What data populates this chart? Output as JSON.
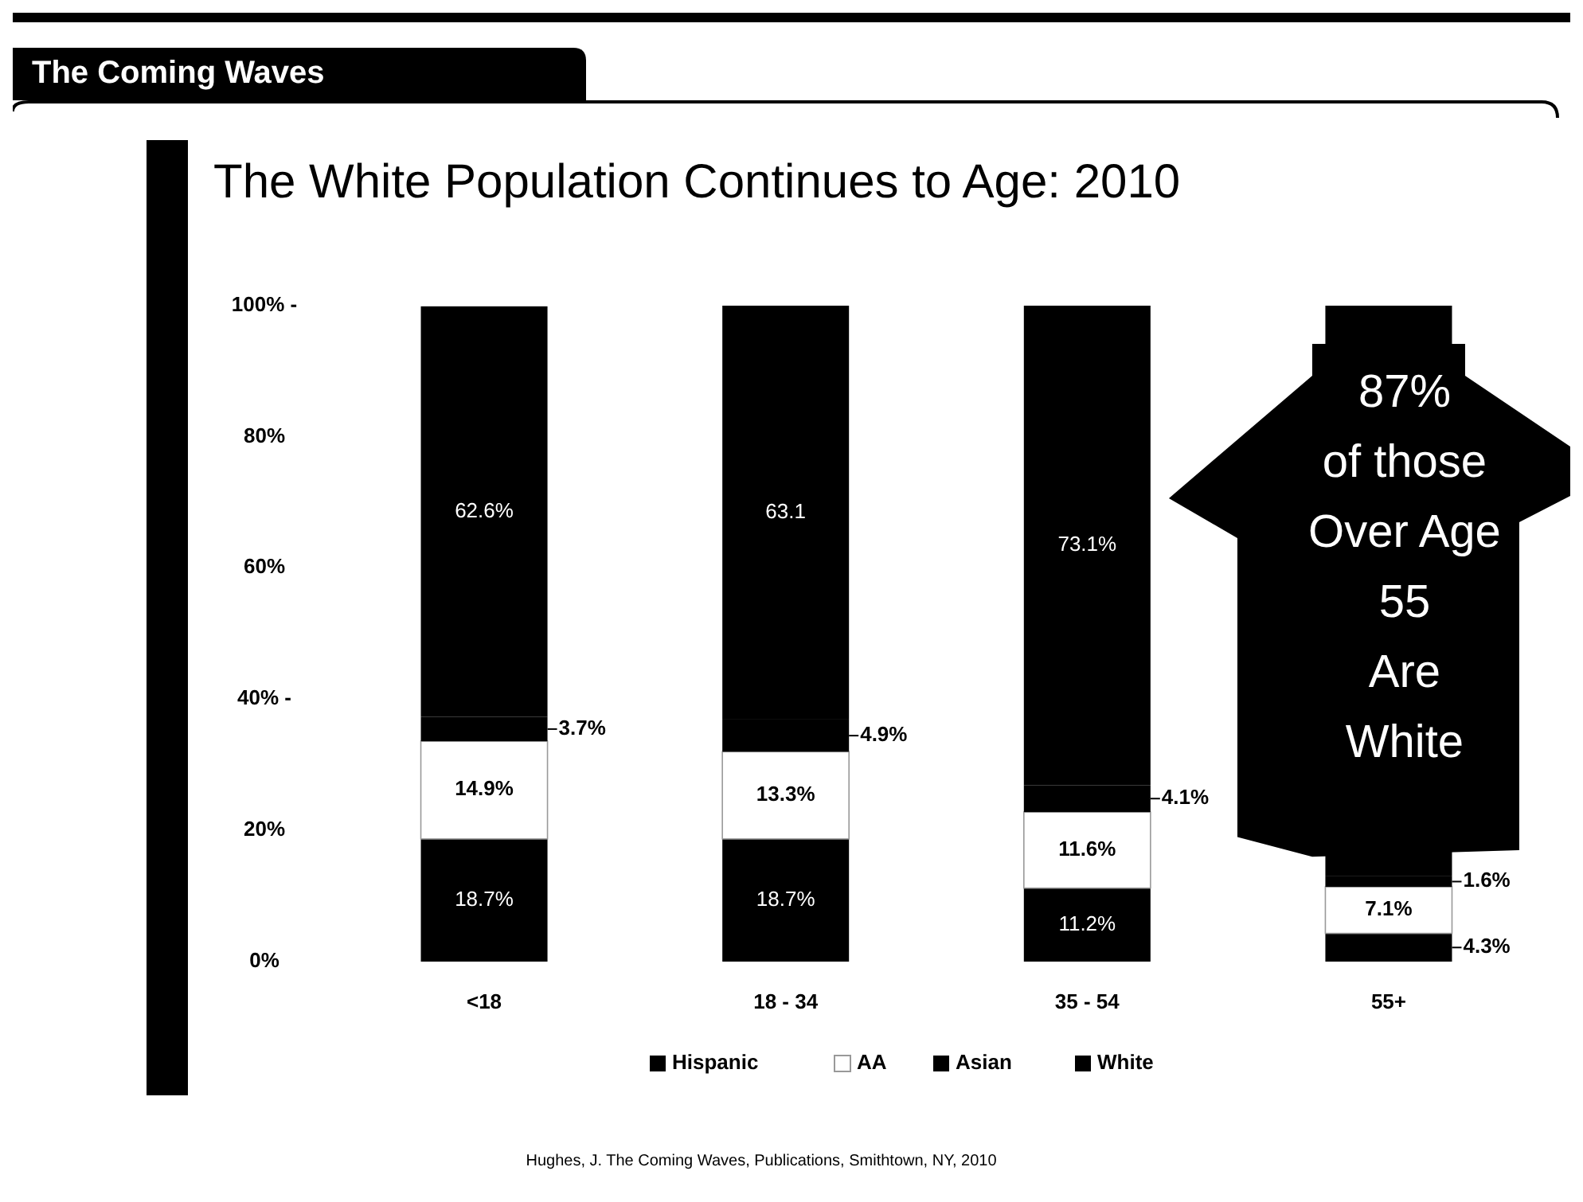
{
  "chart_data": {
    "type": "bar",
    "stacked": true,
    "subtitle": "The Coming Waves",
    "title": "The White Population Continues to Age: 2010",
    "categories": [
      "<18",
      "18 - 34",
      "35 - 54",
      "55+"
    ],
    "series": [
      {
        "name": "Hispanic",
        "color": "#000000",
        "values": [
          18.7,
          18.7,
          11.2,
          4.3
        ],
        "value_labels": [
          "18.7%",
          "18.7%",
          "11.2%",
          "4.3%"
        ]
      },
      {
        "name": "AA",
        "color": "#ffffff",
        "values": [
          14.9,
          13.3,
          11.6,
          7.1
        ],
        "value_labels": [
          "14.9%",
          "13.3%",
          "11.6%",
          "7.1%"
        ]
      },
      {
        "name": "Asian",
        "color": "#000000",
        "values": [
          3.7,
          4.9,
          4.1,
          1.6
        ],
        "value_labels": [
          "3.7%",
          "4.9%",
          "4.1%",
          "1.6%"
        ]
      },
      {
        "name": "White",
        "color": "#000000",
        "values": [
          62.6,
          63.1,
          73.1,
          87
        ],
        "value_labels": [
          "62.6%",
          "63.1",
          "73.1%",
          null
        ]
      }
    ],
    "ylim": [
      0,
      100
    ],
    "yticks": [
      {
        "value": 0,
        "label": "0%"
      },
      {
        "value": 20,
        "label": "20%"
      },
      {
        "value": 40,
        "label": "40% -"
      },
      {
        "value": 60,
        "label": "60%"
      },
      {
        "value": 80,
        "label": "80%"
      },
      {
        "value": 100,
        "label": "100% -"
      }
    ],
    "grid": false,
    "legend": "bottom",
    "annotations": [
      "87%\nof those\nOver Age\n55\nAre\nWhite",
      "Hughes, J. The Coming Waves, Publications, Smithtown, NY, 2010"
    ]
  }
}
